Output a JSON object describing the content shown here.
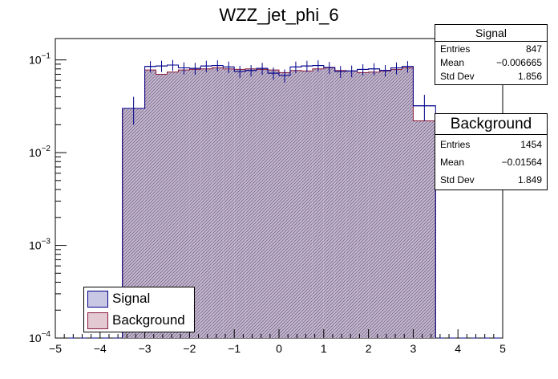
{
  "chart_data": {
    "type": "histogram",
    "title": "WZZ_jet_phi_6",
    "xlabel": "",
    "ylabel": "",
    "yscale": "log",
    "xlim": [
      -5,
      5
    ],
    "ylim": [
      0.0001,
      0.17
    ],
    "x_ticks": [
      "−5",
      "−4",
      "−3",
      "−2",
      "−1",
      "0",
      "1",
      "2",
      "3",
      "4",
      "5"
    ],
    "y_ticks": [
      {
        "base": "10",
        "exp": "−1",
        "value": 0.1
      },
      {
        "base": "10",
        "exp": "−2",
        "value": 0.01
      },
      {
        "base": "10",
        "exp": "−3",
        "value": 0.001
      },
      {
        "base": "10",
        "exp": "−4",
        "value": 0.0001
      }
    ],
    "bin_edges": [
      -3.5,
      -3.0,
      -2.75,
      -2.5,
      -2.25,
      -2.0,
      -1.75,
      -1.5,
      -1.25,
      -1.0,
      -0.75,
      -0.5,
      -0.25,
      0.0,
      0.25,
      0.5,
      0.75,
      1.0,
      1.25,
      1.5,
      1.75,
      2.0,
      2.25,
      2.5,
      2.75,
      3.0,
      3.5
    ],
    "series": [
      {
        "name": "Signal",
        "color": "#00008b",
        "fill": "#a9aad3",
        "values": [
          0.03,
          0.085,
          0.086,
          0.088,
          0.082,
          0.081,
          0.086,
          0.087,
          0.084,
          0.075,
          0.077,
          0.081,
          0.072,
          0.068,
          0.084,
          0.086,
          0.087,
          0.083,
          0.075,
          0.076,
          0.079,
          0.08,
          0.077,
          0.082,
          0.085,
          0.032
        ],
        "errors": [
          0.01,
          0.012,
          0.012,
          0.012,
          0.012,
          0.012,
          0.012,
          0.012,
          0.012,
          0.011,
          0.011,
          0.012,
          0.011,
          0.011,
          0.012,
          0.012,
          0.012,
          0.012,
          0.011,
          0.011,
          0.011,
          0.012,
          0.011,
          0.012,
          0.012,
          0.01
        ]
      },
      {
        "name": "Background",
        "color": "#8b1a3a",
        "fill": "#d8b6c2",
        "values": [
          0.03,
          0.078,
          0.07,
          0.074,
          0.078,
          0.079,
          0.08,
          0.082,
          0.08,
          0.079,
          0.08,
          0.079,
          0.078,
          0.073,
          0.077,
          0.076,
          0.08,
          0.082,
          0.077,
          0.076,
          0.073,
          0.074,
          0.076,
          0.079,
          0.082,
          0.022
        ]
      }
    ],
    "stats_boxes": [
      {
        "title": "Signal",
        "rows": [
          [
            "Entries",
            "847"
          ],
          [
            "Mean",
            "−0.006665"
          ],
          [
            "Std Dev",
            "1.856"
          ]
        ]
      },
      {
        "title": "Background",
        "rows": [
          [
            "Entries",
            "1454"
          ],
          [
            "Mean",
            "−0.01564"
          ],
          [
            "Std Dev",
            "1.849"
          ]
        ]
      }
    ],
    "legend": {
      "placement": "bottom-left",
      "entries": [
        "Signal",
        "Background"
      ]
    }
  }
}
